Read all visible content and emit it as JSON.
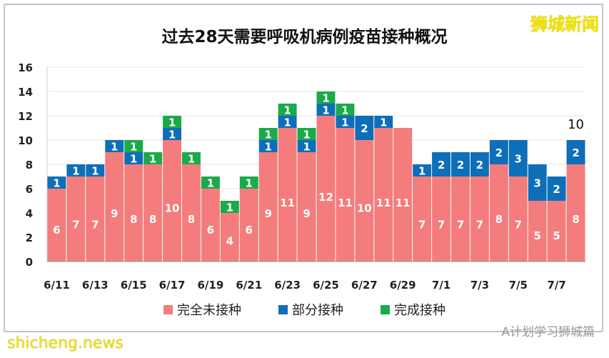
{
  "title": "过去28天需要呼吸机病例疫苗接种概况",
  "logo": "狮城新闻",
  "watermarks": {
    "site": "shicheng.news",
    "wechat": "A计划学习狮城篇"
  },
  "colors": {
    "unvaccinated": "#F47C7C",
    "partial": "#0E6EB8",
    "full": "#1AAA4A"
  },
  "chart_data": {
    "type": "bar",
    "stacked": true,
    "title": "过去28天需要呼吸机病例疫苗接种概况",
    "categories": [
      "6/11",
      "6/12",
      "6/13",
      "6/14",
      "6/15",
      "6/16",
      "6/17",
      "6/18",
      "6/19",
      "6/20",
      "6/21",
      "6/22",
      "6/23",
      "6/24",
      "6/25",
      "6/26",
      "6/27",
      "6/28",
      "6/29",
      "6/30",
      "7/1",
      "7/2",
      "7/3",
      "7/4",
      "7/5",
      "7/6",
      "7/7",
      "7/8"
    ],
    "tick_labels": [
      "6/11",
      "6/13",
      "6/15",
      "6/17",
      "6/19",
      "6/21",
      "6/23",
      "6/25",
      "6/27",
      "6/29",
      "7/1",
      "7/3",
      "7/5",
      "7/7"
    ],
    "ylim": [
      0,
      16
    ],
    "yticks": [
      0,
      2,
      4,
      6,
      8,
      10,
      12,
      14,
      16
    ],
    "grid": true,
    "legend": "bottom",
    "series": [
      {
        "name": "完全未接种",
        "values": [
          6,
          7,
          7,
          9,
          8,
          8,
          10,
          8,
          6,
          4,
          6,
          9,
          11,
          9,
          12,
          11,
          10,
          11,
          11,
          7,
          7,
          7,
          7,
          8,
          7,
          5,
          5,
          8
        ]
      },
      {
        "name": "部分接种",
        "values": [
          1,
          1,
          1,
          1,
          1,
          0,
          1,
          0,
          0,
          0,
          0,
          1,
          1,
          1,
          1,
          1,
          2,
          1,
          0,
          1,
          2,
          2,
          2,
          2,
          3,
          3,
          2,
          2
        ]
      },
      {
        "name": "完成接种",
        "values": [
          0,
          0,
          0,
          0,
          1,
          1,
          1,
          1,
          1,
          1,
          1,
          1,
          1,
          1,
          1,
          1,
          0,
          0,
          0,
          0,
          0,
          0,
          0,
          0,
          0,
          0,
          0,
          0
        ]
      }
    ],
    "annotations": [
      {
        "category": "7/8",
        "text": "10"
      }
    ]
  }
}
